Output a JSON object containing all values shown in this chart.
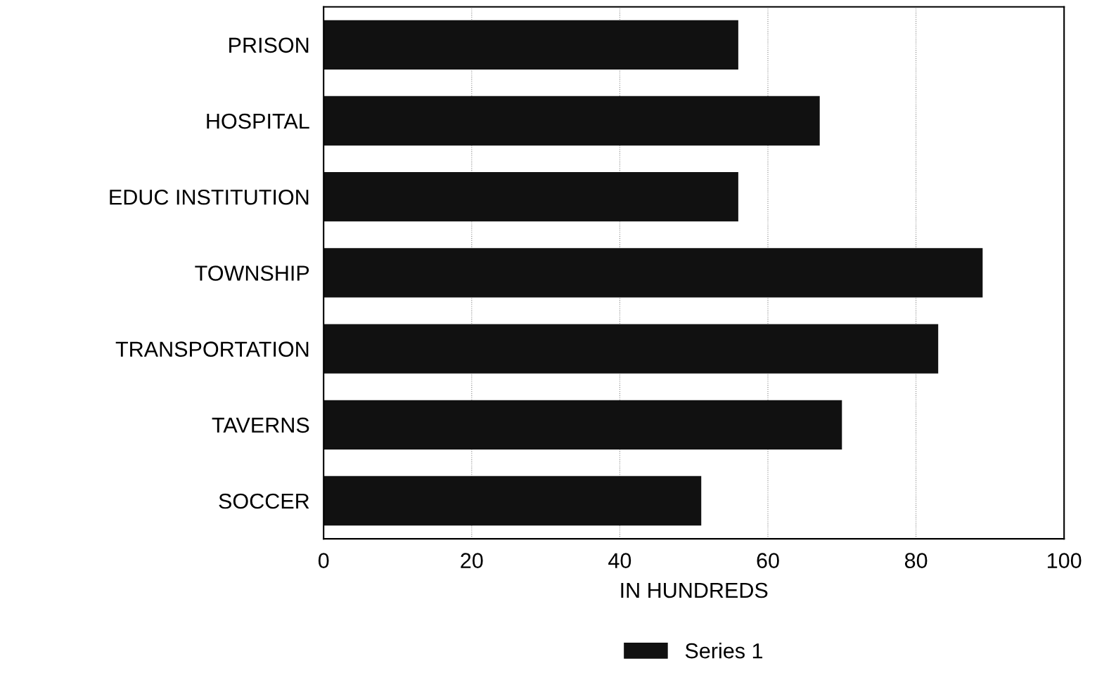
{
  "chart_data": {
    "type": "bar",
    "orientation": "horizontal",
    "xlabel": "IN HUNDREDS",
    "categories": [
      "PRISON",
      "HOSPITAL",
      "EDUC INSTITUTION",
      "TOWNSHIP",
      "TRANSPORTATION",
      "TAVERNS",
      "SOCCER"
    ],
    "series": [
      {
        "name": "Series 1",
        "color": "#111111",
        "values": [
          56,
          67,
          56,
          89,
          83,
          70,
          51
        ]
      }
    ],
    "xlim": [
      0,
      100
    ],
    "xticks": [
      0,
      20,
      40,
      60,
      80,
      100
    ],
    "grid": "x",
    "legend": "bottom"
  }
}
